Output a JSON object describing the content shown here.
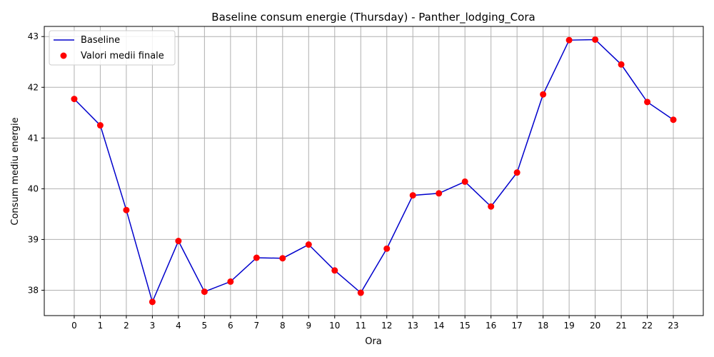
{
  "chart_data": {
    "type": "line",
    "title": "Baseline consum energie (Thursday) - Panther_lodging_Cora",
    "xlabel": "Ora",
    "ylabel": "Consum mediu energie",
    "x": [
      0,
      1,
      2,
      3,
      4,
      5,
      6,
      7,
      8,
      9,
      10,
      11,
      12,
      13,
      14,
      15,
      16,
      17,
      18,
      19,
      20,
      21,
      22,
      23
    ],
    "xlim": [
      -1.15,
      24.15
    ],
    "ylim": [
      37.5,
      43.2
    ],
    "yticks": [
      38,
      39,
      40,
      41,
      42,
      43
    ],
    "grid": true,
    "legend_position": "top-left",
    "series": [
      {
        "name": "Baseline",
        "kind": "line",
        "color": "#0000cc",
        "values": [
          41.77,
          41.25,
          39.58,
          37.77,
          38.97,
          37.97,
          38.17,
          38.64,
          38.63,
          38.9,
          38.39,
          37.95,
          38.82,
          39.87,
          39.91,
          40.14,
          39.65,
          40.32,
          41.86,
          42.93,
          42.94,
          42.45,
          41.71,
          41.36
        ]
      },
      {
        "name": "Valori medii finale",
        "kind": "scatter",
        "color": "#ff0000",
        "values": [
          41.77,
          41.25,
          39.58,
          37.77,
          38.97,
          37.97,
          38.17,
          38.64,
          38.63,
          38.9,
          38.39,
          37.95,
          38.82,
          39.87,
          39.91,
          40.14,
          39.65,
          40.32,
          41.86,
          42.93,
          42.94,
          42.45,
          41.71,
          41.36
        ]
      }
    ]
  }
}
